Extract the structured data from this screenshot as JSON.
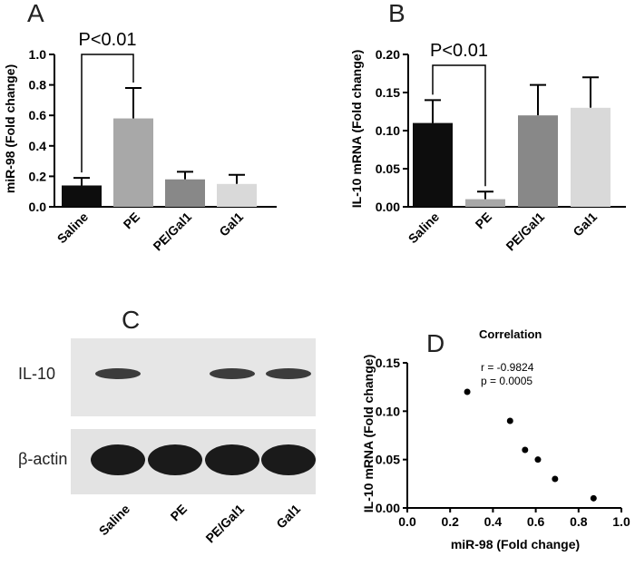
{
  "chart_data": [
    {
      "panel": "A",
      "type": "bar",
      "categories": [
        "Saline",
        "PE",
        "PE/Gal1",
        "Gal1"
      ],
      "values": [
        0.14,
        0.58,
        0.18,
        0.15
      ],
      "errors": [
        0.05,
        0.2,
        0.05,
        0.06
      ],
      "colors": [
        "#0d0d0d",
        "#a8a8a8",
        "#888888",
        "#d9d9d9"
      ],
      "ylabel": "miR-98 (Fold change)",
      "ylim": [
        0,
        1.0
      ],
      "yticks": [
        "0.0",
        "0.2",
        "0.4",
        "0.6",
        "0.8",
        "1.0"
      ],
      "significance": "P<0.01"
    },
    {
      "panel": "B",
      "type": "bar",
      "categories": [
        "Saline",
        "PE",
        "PE/Gal1",
        "Gal1"
      ],
      "values": [
        0.11,
        0.01,
        0.12,
        0.13
      ],
      "errors": [
        0.03,
        0.01,
        0.04,
        0.04
      ],
      "colors": [
        "#0d0d0d",
        "#a8a8a8",
        "#888888",
        "#d9d9d9"
      ],
      "ylabel": "IL-10 mRNA (Fold change)",
      "ylim": [
        0,
        0.2
      ],
      "yticks": [
        "0.00",
        "0.05",
        "0.10",
        "0.15",
        "0.20"
      ],
      "significance": "P<0.01"
    },
    {
      "panel": "D",
      "type": "scatter",
      "title": "Correlation",
      "points": [
        [
          0.28,
          0.12
        ],
        [
          0.48,
          0.09
        ],
        [
          0.55,
          0.06
        ],
        [
          0.61,
          0.05
        ],
        [
          0.69,
          0.03
        ],
        [
          0.87,
          0.01
        ]
      ],
      "xlabel": "miR-98 (Fold change)",
      "ylabel": "IL-10 mRNA (Fold change)",
      "xlim": [
        0,
        1.0
      ],
      "ylim": [
        0,
        0.15
      ],
      "xticks": [
        "0.0",
        "0.2",
        "0.4",
        "0.6",
        "0.8",
        "1.0"
      ],
      "yticks": [
        "0.00",
        "0.05",
        "0.10",
        "0.15"
      ],
      "r_label": "r = -0.9824",
      "p_label": "p = 0.0005"
    }
  ],
  "panel_c": {
    "letter": "C",
    "rows": [
      "IL-10",
      "β-actin"
    ],
    "lanes": [
      "Saline",
      "PE",
      "PE/Gal1",
      "Gal1"
    ]
  },
  "panel_letters": {
    "a": "A",
    "b": "B",
    "d": "D"
  }
}
